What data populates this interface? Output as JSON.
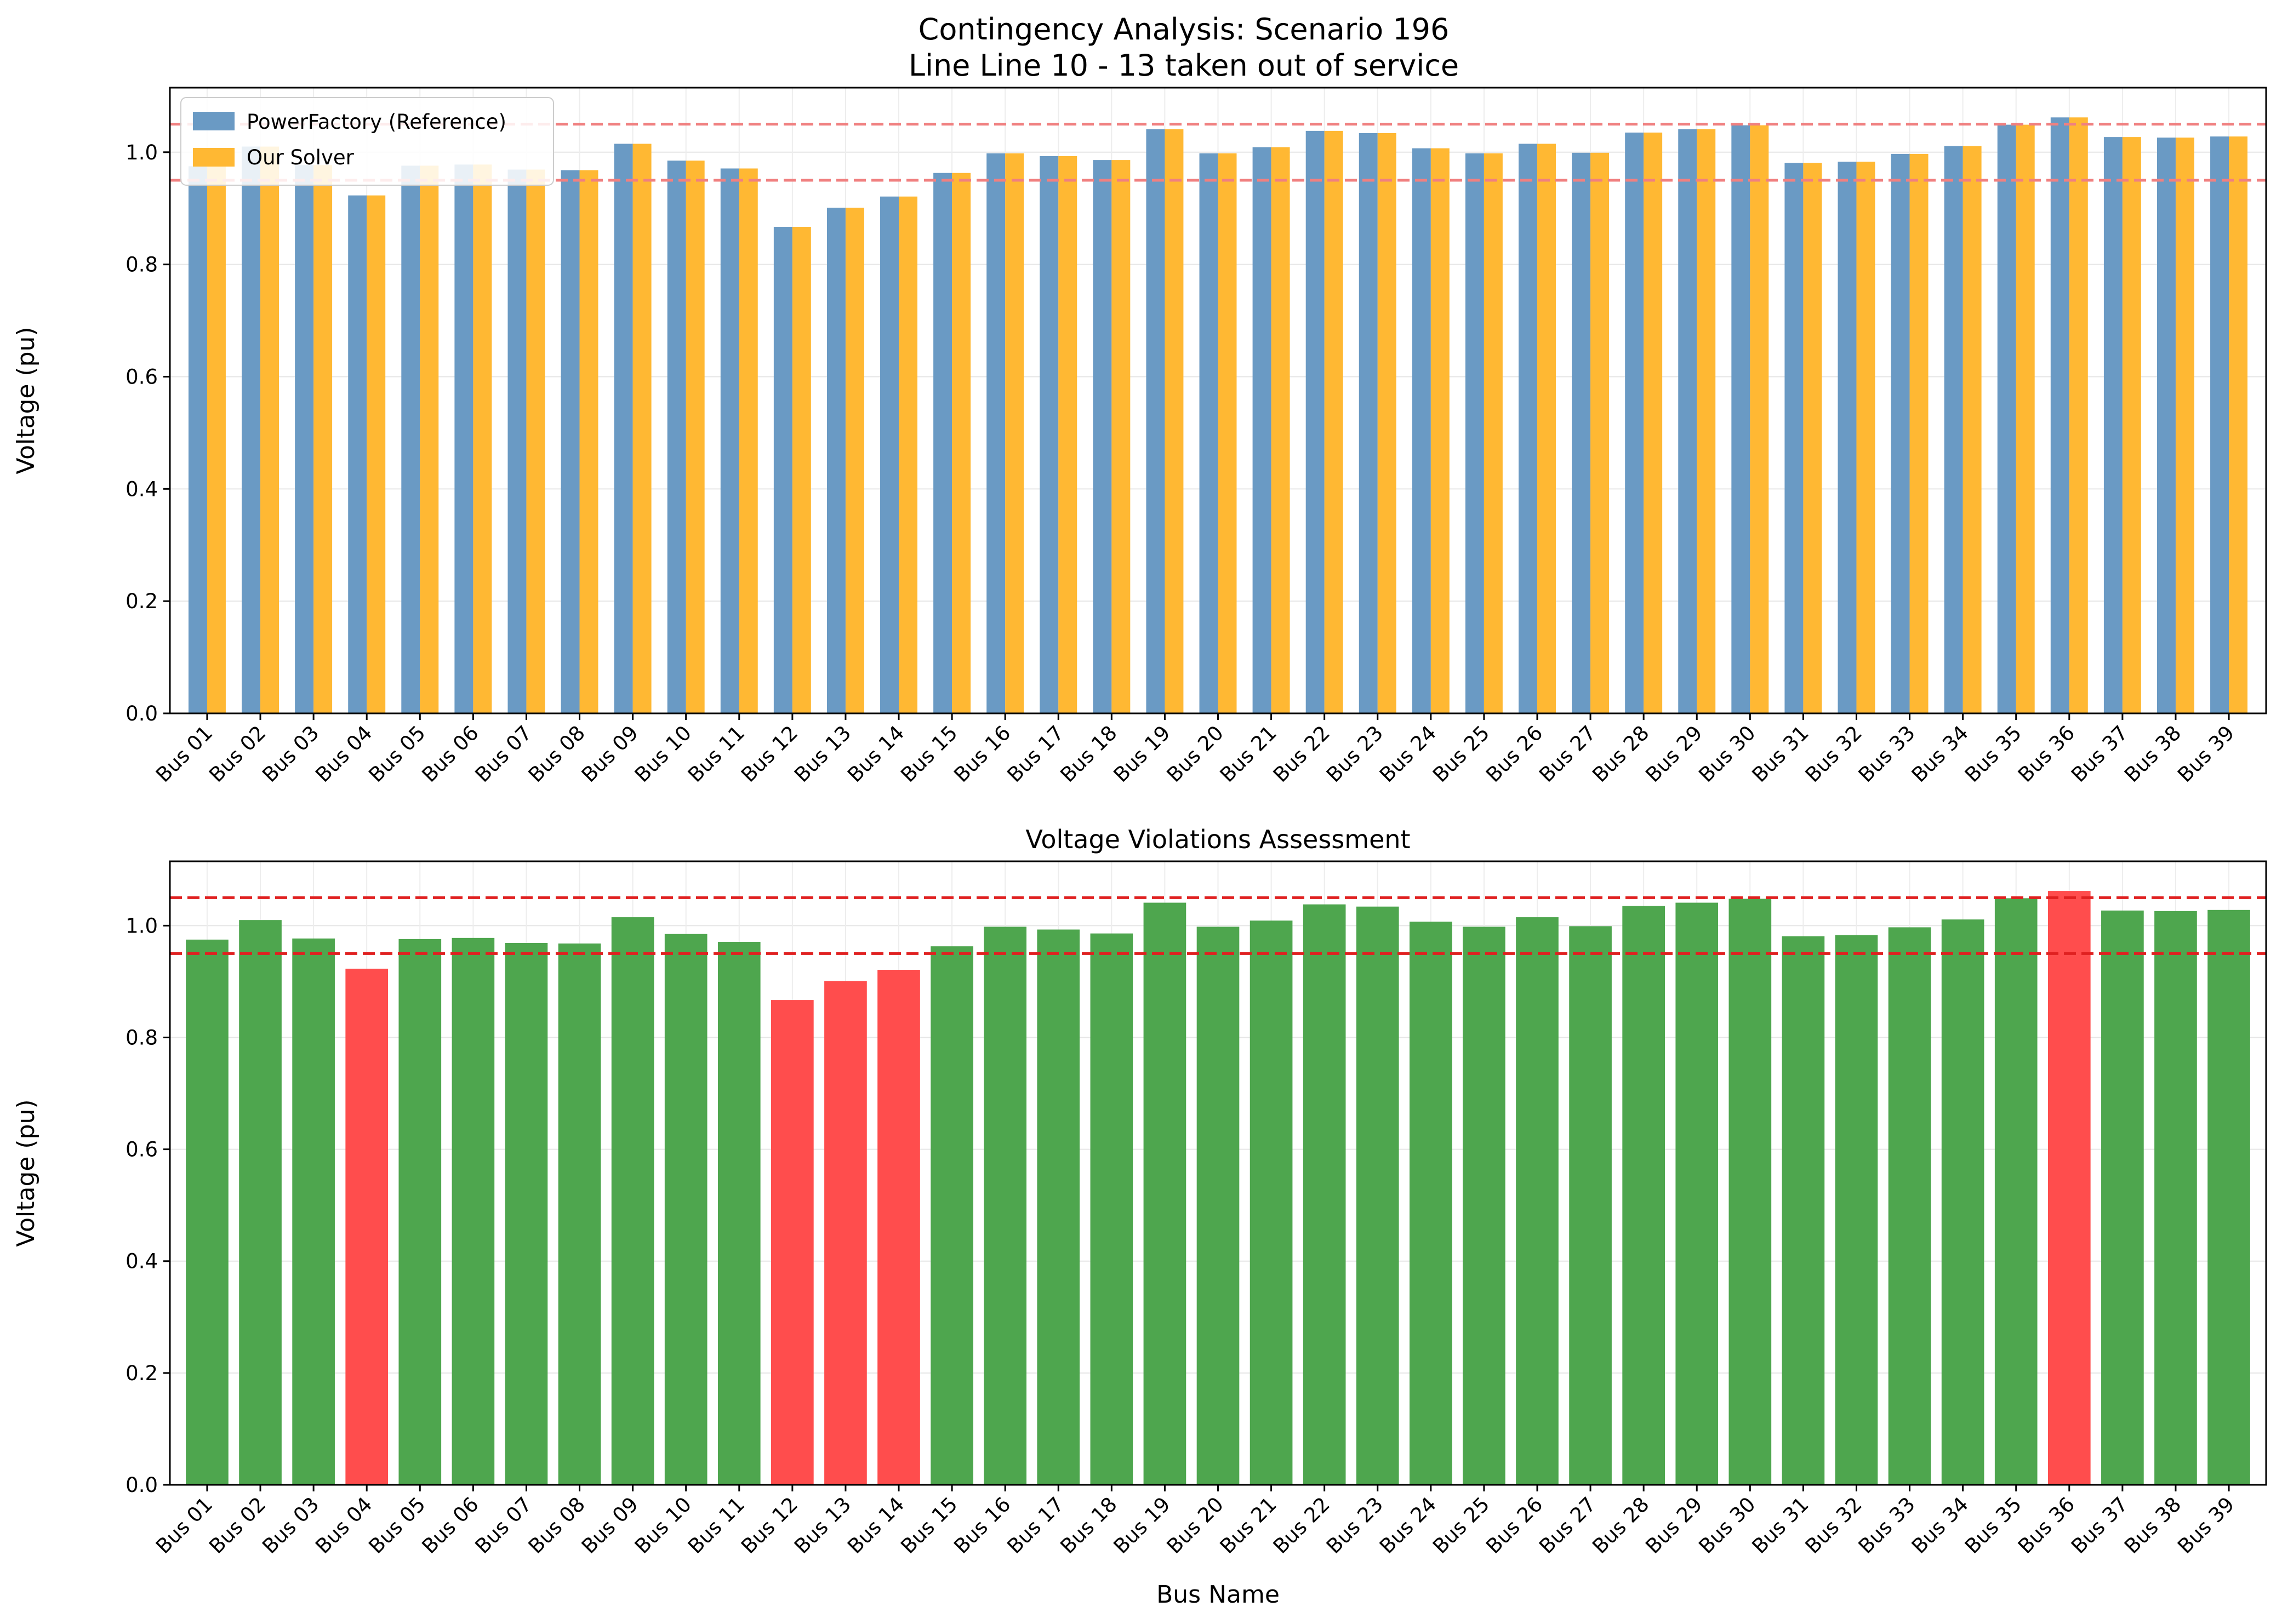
{
  "figure": {
    "title_line1": "Contingency Analysis: Scenario 196",
    "title_line2": "Line Line 10 - 13 taken out of service"
  },
  "colors": {
    "reference": "#6a9ac4",
    "solver": "#ffb833",
    "ok": "#4ea64e",
    "violation": "#ff4d4d",
    "limit_top": "#f08080",
    "limit_bottom": "#e02020"
  },
  "chart_data": [
    {
      "type": "bar",
      "title": "",
      "xlabel": "",
      "ylabel": "Voltage (pu)",
      "ylim": [
        0,
        1.115
      ],
      "yticks": [
        0.0,
        0.2,
        0.4,
        0.6,
        0.8,
        1.0
      ],
      "grid": true,
      "legend": "top-left",
      "limits": [
        0.95,
        1.05
      ],
      "categories": [
        "Bus 01",
        "Bus 02",
        "Bus 03",
        "Bus 04",
        "Bus 05",
        "Bus 06",
        "Bus 07",
        "Bus 08",
        "Bus 09",
        "Bus 10",
        "Bus 11",
        "Bus 12",
        "Bus 13",
        "Bus 14",
        "Bus 15",
        "Bus 16",
        "Bus 17",
        "Bus 18",
        "Bus 19",
        "Bus 20",
        "Bus 21",
        "Bus 22",
        "Bus 23",
        "Bus 24",
        "Bus 25",
        "Bus 26",
        "Bus 27",
        "Bus 28",
        "Bus 29",
        "Bus 30",
        "Bus 31",
        "Bus 32",
        "Bus 33",
        "Bus 34",
        "Bus 35",
        "Bus 36",
        "Bus 37",
        "Bus 38",
        "Bus 39"
      ],
      "series": [
        {
          "name": "PowerFactory (Reference)",
          "values": [
            0.975,
            1.01,
            0.977,
            0.923,
            0.976,
            0.978,
            0.969,
            0.968,
            1.015,
            0.985,
            0.971,
            0.867,
            0.901,
            0.921,
            0.963,
            0.998,
            0.993,
            0.986,
            1.041,
            0.998,
            1.009,
            1.038,
            1.034,
            1.007,
            0.998,
            1.015,
            0.999,
            1.035,
            1.041,
            1.048,
            0.981,
            0.983,
            0.997,
            1.011,
            1.049,
            1.062,
            1.027,
            1.026,
            1.028
          ]
        },
        {
          "name": "Our Solver",
          "values": [
            0.975,
            1.01,
            0.977,
            0.923,
            0.976,
            0.978,
            0.969,
            0.968,
            1.015,
            0.985,
            0.971,
            0.867,
            0.901,
            0.921,
            0.963,
            0.998,
            0.993,
            0.986,
            1.041,
            0.998,
            1.009,
            1.038,
            1.034,
            1.007,
            0.998,
            1.015,
            0.999,
            1.035,
            1.041,
            1.048,
            0.981,
            0.983,
            0.997,
            1.011,
            1.049,
            1.062,
            1.027,
            1.026,
            1.028
          ]
        }
      ]
    },
    {
      "type": "bar",
      "title": "Voltage Violations Assessment",
      "xlabel": "Bus Name",
      "ylabel": "Voltage (pu)",
      "ylim": [
        0,
        1.115
      ],
      "yticks": [
        0.0,
        0.2,
        0.4,
        0.6,
        0.8,
        1.0
      ],
      "grid": true,
      "limits": [
        0.95,
        1.05
      ],
      "categories": [
        "Bus 01",
        "Bus 02",
        "Bus 03",
        "Bus 04",
        "Bus 05",
        "Bus 06",
        "Bus 07",
        "Bus 08",
        "Bus 09",
        "Bus 10",
        "Bus 11",
        "Bus 12",
        "Bus 13",
        "Bus 14",
        "Bus 15",
        "Bus 16",
        "Bus 17",
        "Bus 18",
        "Bus 19",
        "Bus 20",
        "Bus 21",
        "Bus 22",
        "Bus 23",
        "Bus 24",
        "Bus 25",
        "Bus 26",
        "Bus 27",
        "Bus 28",
        "Bus 29",
        "Bus 30",
        "Bus 31",
        "Bus 32",
        "Bus 33",
        "Bus 34",
        "Bus 35",
        "Bus 36",
        "Bus 37",
        "Bus 38",
        "Bus 39"
      ],
      "values": [
        0.975,
        1.01,
        0.977,
        0.923,
        0.976,
        0.978,
        0.969,
        0.968,
        1.015,
        0.985,
        0.971,
        0.867,
        0.901,
        0.921,
        0.963,
        0.998,
        0.993,
        0.986,
        1.041,
        0.998,
        1.009,
        1.038,
        1.034,
        1.007,
        0.998,
        1.015,
        0.999,
        1.035,
        1.041,
        1.048,
        0.981,
        0.983,
        0.997,
        1.011,
        1.049,
        1.062,
        1.027,
        1.026,
        1.028
      ],
      "violation": [
        false,
        false,
        false,
        true,
        false,
        false,
        false,
        false,
        false,
        false,
        false,
        true,
        true,
        true,
        false,
        false,
        false,
        false,
        false,
        false,
        false,
        false,
        false,
        false,
        false,
        false,
        false,
        false,
        false,
        false,
        false,
        false,
        false,
        false,
        false,
        true,
        false,
        false,
        false
      ]
    }
  ]
}
